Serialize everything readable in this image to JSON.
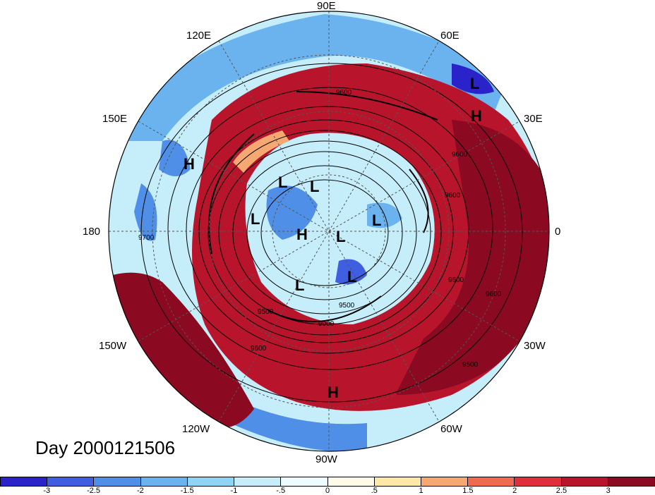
{
  "title": "Day 2000121506",
  "longitude_labels": {
    "top": "90E",
    "top_right": "60E",
    "right_upper": "30E",
    "right": "0",
    "right_lower": "30W",
    "bottom_right": "60W",
    "bottom": "90W",
    "bottom_left": "120W",
    "left_lower": "150W",
    "left": "180",
    "left_upper": "150E",
    "top_left": "120E"
  },
  "centers": [
    {
      "type": "H",
      "label": "H"
    },
    {
      "type": "H",
      "label": "H"
    },
    {
      "type": "H",
      "label": "H"
    },
    {
      "type": "H",
      "label": "H"
    },
    {
      "type": "L",
      "label": "L"
    },
    {
      "type": "L",
      "label": "L"
    },
    {
      "type": "L",
      "label": "L"
    },
    {
      "type": "L",
      "label": "L"
    },
    {
      "type": "L",
      "label": "L"
    },
    {
      "type": "L",
      "label": "L"
    },
    {
      "type": "L",
      "label": "L"
    },
    {
      "type": "L",
      "label": "L"
    }
  ],
  "contour_labels": [
    "9600",
    "9600",
    "9600",
    "9600",
    "9500",
    "9500",
    "9600",
    "9700",
    "9600",
    "9500",
    "9000"
  ],
  "colorbar": {
    "ticks": [
      "-3",
      "-2.5",
      "-2",
      "-1.5",
      "-1",
      "-.5",
      "0",
      ".5",
      "1",
      "1.5",
      "2",
      "2.5",
      "3"
    ],
    "colors": [
      "#2a23c9",
      "#3f5fe0",
      "#4f8fe8",
      "#6bb3ef",
      "#8fd3f5",
      "#c5eefa",
      "#eefbff",
      "#fffbe6",
      "#fde8a8",
      "#f6a873",
      "#ef6a4f",
      "#e02f3b",
      "#b8152c",
      "#8b0a22"
    ]
  }
}
